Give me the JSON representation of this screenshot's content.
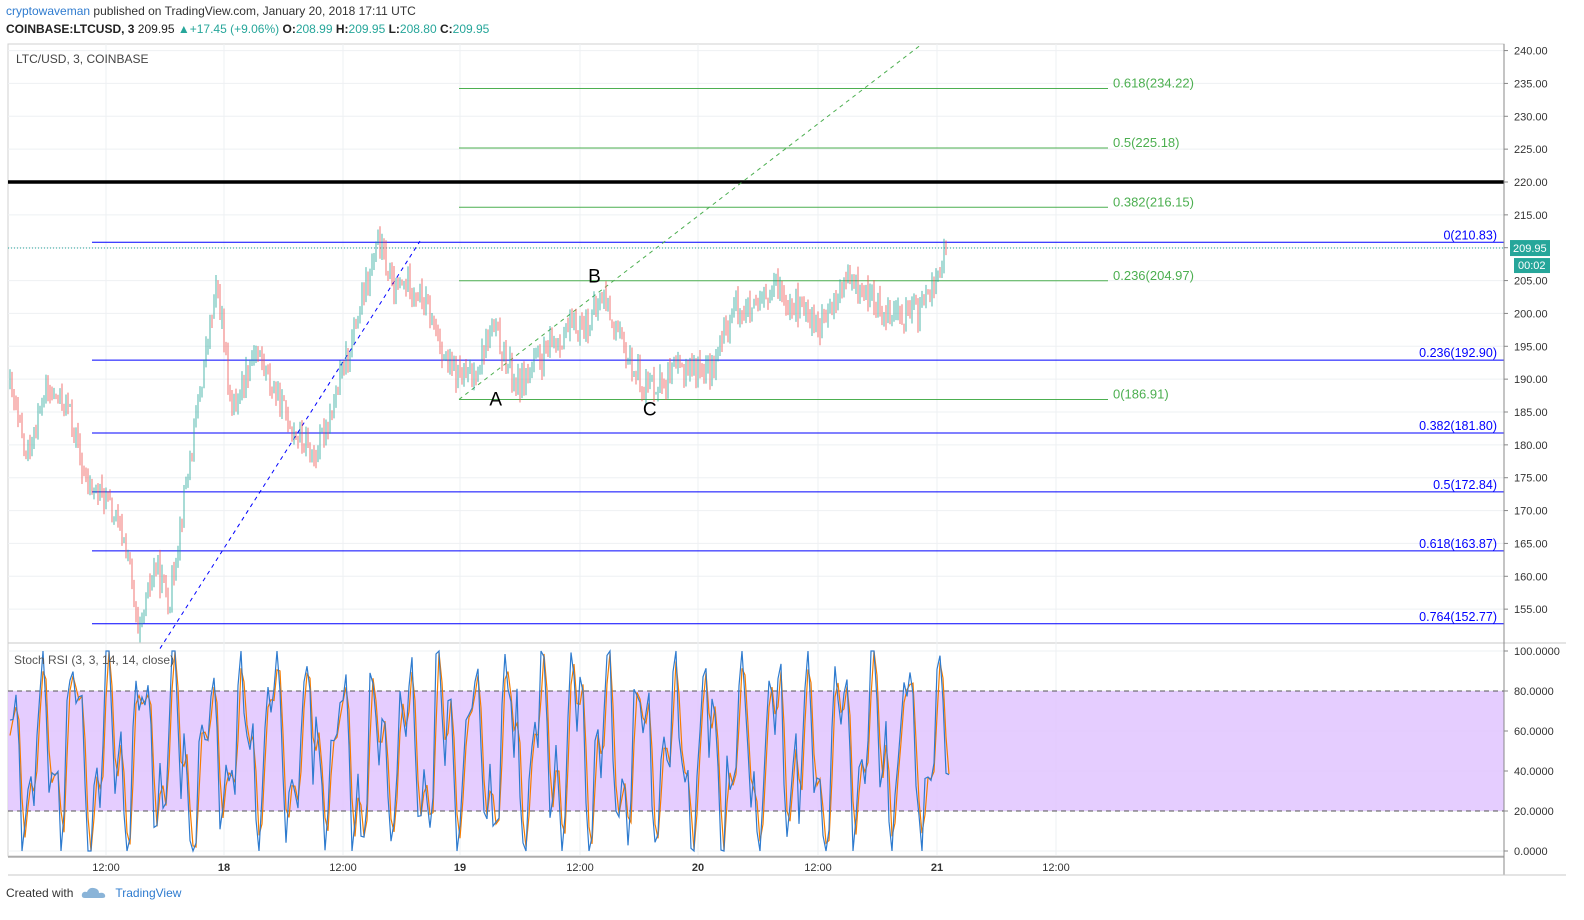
{
  "header": {
    "author": "cryptowaveman",
    "published_text": "published on TradingView.com, January 20, 2018 17:11 UTC",
    "symbol_line": "COINBASE:LTCUSD, 3",
    "last": "209.95",
    "change": "+17.45 (+9.06%)",
    "o_label": "O:",
    "o_value": "208.99",
    "h_label": "H:",
    "h_value": "209.95",
    "l_label": "L:",
    "l_value": "208.80",
    "c_label": "C:",
    "c_value": "209.95"
  },
  "footer": {
    "created_with": "Created with",
    "brand": "TradingView"
  },
  "chart_data": {
    "type": "candlestick",
    "pane_title": "LTC/USD, 3, COINBASE",
    "ylim": [
      150,
      241
    ],
    "y_ticks": [
      "240.00",
      "235.00",
      "230.00",
      "225.00",
      "220.00",
      "215.00",
      "210.00",
      "205.00",
      "200.00",
      "195.00",
      "190.00",
      "185.00",
      "180.00",
      "175.00",
      "170.00",
      "165.00",
      "160.00",
      "155.00"
    ],
    "x_ticks": [
      "12:00",
      "18",
      "12:00",
      "19",
      "12:00",
      "20",
      "12:00",
      "21",
      "12:00"
    ],
    "last_price_label": "209.95",
    "countdown_label": "00:02",
    "colors": {
      "up": "#26a69a",
      "down": "#ef5350",
      "fib_blue": "#0000ff",
      "fib_green": "#4caf50",
      "resistance": "#000000",
      "rsi_k": "#2e7bcf",
      "rsi_d": "#f57c00",
      "rsi_band": "#e1c4ff"
    },
    "price_path": [
      [
        0,
        190
      ],
      [
        0.012,
        178
      ],
      [
        0.025,
        188
      ],
      [
        0.04,
        186
      ],
      [
        0.052,
        174
      ],
      [
        0.065,
        172
      ],
      [
        0.08,
        164
      ],
      [
        0.087,
        150
      ],
      [
        0.098,
        162
      ],
      [
        0.108,
        156
      ],
      [
        0.115,
        168
      ],
      [
        0.125,
        183
      ],
      [
        0.135,
        198
      ],
      [
        0.14,
        204
      ],
      [
        0.15,
        185
      ],
      [
        0.165,
        195
      ],
      [
        0.178,
        188
      ],
      [
        0.192,
        182
      ],
      [
        0.205,
        178
      ],
      [
        0.22,
        188
      ],
      [
        0.232,
        198
      ],
      [
        0.242,
        206
      ],
      [
        0.248,
        211
      ],
      [
        0.258,
        203
      ],
      [
        0.268,
        205
      ],
      [
        0.28,
        201
      ],
      [
        0.296,
        191
      ],
      [
        0.31,
        190
      ],
      [
        0.324,
        198
      ],
      [
        0.34,
        189
      ],
      [
        0.356,
        193
      ],
      [
        0.372,
        197
      ],
      [
        0.39,
        199
      ],
      [
        0.398,
        203
      ],
      [
        0.41,
        195
      ],
      [
        0.425,
        189
      ],
      [
        0.44,
        190
      ],
      [
        0.455,
        192
      ],
      [
        0.47,
        191
      ],
      [
        0.485,
        201
      ],
      [
        0.5,
        200
      ],
      [
        0.514,
        204
      ],
      [
        0.528,
        201
      ],
      [
        0.544,
        198
      ],
      [
        0.56,
        205
      ],
      [
        0.574,
        203
      ],
      [
        0.582,
        201
      ],
      [
        0.6,
        200
      ],
      [
        0.607,
        200
      ],
      [
        0.618,
        204
      ],
      [
        0.628,
        210
      ]
    ],
    "fib_retracement_blue": [
      {
        "label": "0(210.83)",
        "value": 210.83
      },
      {
        "label": "0.236(192.90)",
        "value": 192.9
      },
      {
        "label": "0.382(181.80)",
        "value": 181.8
      },
      {
        "label": "0.5(172.84)",
        "value": 172.84
      },
      {
        "label": "0.618(163.87)",
        "value": 163.87
      },
      {
        "label": "0.764(152.77)",
        "value": 152.77
      }
    ],
    "fib_extension_green": [
      {
        "label": "0.618(234.22)",
        "value": 234.22
      },
      {
        "label": "0.5(225.18)",
        "value": 225.18
      },
      {
        "label": "0.382(216.15)",
        "value": 216.15
      },
      {
        "label": "0.236(204.97)",
        "value": 204.97
      },
      {
        "label": "0(186.91)",
        "value": 186.91
      }
    ],
    "resistance_line": 220,
    "wave_labels": [
      {
        "text": "A",
        "x": 0.326,
        "value": 186.0
      },
      {
        "text": "B",
        "x": 0.392,
        "value": 204.7
      },
      {
        "text": "C",
        "x": 0.429,
        "value": 184.5
      }
    ],
    "rsi": {
      "title": "Stoch RSI (3, 3, 14, 14, close)",
      "ylim": [
        -2,
        102
      ],
      "y_ticks": [
        "100.0000",
        "80.0000",
        "60.0000",
        "40.0000",
        "20.0000",
        "0.0000"
      ],
      "band": [
        20,
        80
      ]
    }
  }
}
